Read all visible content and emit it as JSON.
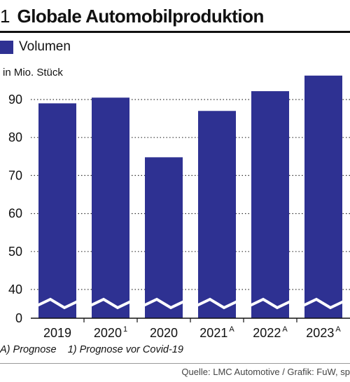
{
  "header": {
    "number": "1",
    "title": "Globale Automobilproduktion"
  },
  "colors": {
    "bar": "#2e3192",
    "text": "#111111",
    "grid": "#333333"
  },
  "chart_data": {
    "type": "bar",
    "title": "Globale Automobilproduktion",
    "unit_label": "in Mio. Stück",
    "legend": [
      {
        "name": "Volumen",
        "color": "#2e3192"
      }
    ],
    "categories": [
      {
        "label": "2019",
        "sup": ""
      },
      {
        "label": "2020",
        "sup": "1"
      },
      {
        "label": "2020",
        "sup": ""
      },
      {
        "label": "2021",
        "sup": "A"
      },
      {
        "label": "2022",
        "sup": "A"
      },
      {
        "label": "2023",
        "sup": "A"
      }
    ],
    "series": [
      {
        "name": "Volumen",
        "values": [
          89,
          90.5,
          74.8,
          87,
          92.2,
          96.3
        ]
      }
    ],
    "y_ticks": [
      "0",
      "40",
      "50",
      "60",
      "70",
      "80",
      "90"
    ],
    "ylim": [
      40,
      95
    ],
    "axis_break": true,
    "grid": "dotted horizontal"
  },
  "footnote": "A) Prognose    1) Prognose vor Covid-19",
  "source": "Quelle: LMC Automotive / Grafik: FuW, sp"
}
